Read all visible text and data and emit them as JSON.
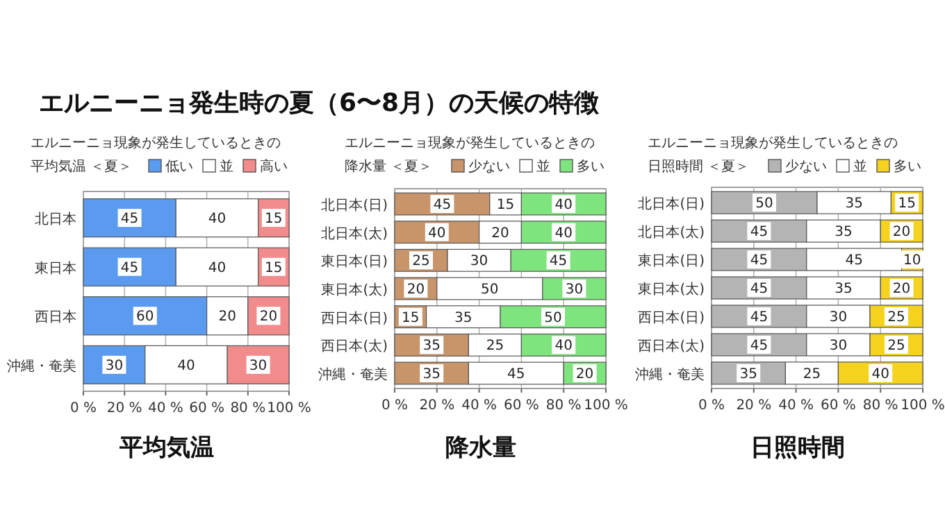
{
  "chart_data": [
    {
      "type": "bar",
      "orientation": "horizontal",
      "stacked": true,
      "annotations": [
        "エルニーニョ発生時の夏（6〜8月）の天候の特徴"
      ],
      "title": "エルニーニョ現象が発生しているときの",
      "subtitle": "平均気温 ＜夏＞",
      "xlabel": "平均気温",
      "categories": [
        "北日本",
        "東日本",
        "西日本",
        "沖縄・奄美"
      ],
      "series": [
        {
          "name": "低い",
          "color": "#5b9bef",
          "values": [
            45,
            45,
            60,
            30
          ]
        },
        {
          "name": "並",
          "color": "#ffffff",
          "values": [
            40,
            40,
            20,
            40
          ]
        },
        {
          "name": "高い",
          "color": "#f28b8b",
          "values": [
            15,
            15,
            20,
            30
          ]
        }
      ],
      "xlim": [
        0,
        100
      ],
      "xticks": [
        {
          "value": 0,
          "label": "0 %"
        },
        {
          "value": 20,
          "label": "20 %"
        },
        {
          "value": 40,
          "label": "40 %"
        },
        {
          "value": 60,
          "label": "60 %"
        },
        {
          "value": 80,
          "label": "80 %"
        },
        {
          "value": 100,
          "label": "100 %"
        }
      ],
      "grid": "x",
      "legend": "top right",
      "data_labels": true
    },
    {
      "type": "bar",
      "orientation": "horizontal",
      "stacked": true,
      "title": "エルニーニョ現象が発生しているときの",
      "subtitle": "降水量 ＜夏＞",
      "xlabel": "降水量",
      "categories": [
        "北日本(日)",
        "北日本(太)",
        "東日本(日)",
        "東日本(太)",
        "西日本(日)",
        "西日本(太)",
        "沖縄・奄美"
      ],
      "series": [
        {
          "name": "少ない",
          "color": "#c8946a",
          "values": [
            45,
            40,
            25,
            20,
            15,
            35,
            35
          ]
        },
        {
          "name": "並",
          "color": "#ffffff",
          "values": [
            15,
            20,
            30,
            50,
            35,
            25,
            45
          ]
        },
        {
          "name": "多い",
          "color": "#7ee47e",
          "values": [
            40,
            40,
            45,
            30,
            50,
            40,
            20
          ]
        }
      ],
      "xlim": [
        0,
        100
      ],
      "xticks": [
        {
          "value": 0,
          "label": "0 %"
        },
        {
          "value": 20,
          "label": "20 %"
        },
        {
          "value": 40,
          "label": "40 %"
        },
        {
          "value": 60,
          "label": "60 %"
        },
        {
          "value": 80,
          "label": "80 %"
        },
        {
          "value": 100,
          "label": "100 %"
        }
      ],
      "grid": "x",
      "legend": "top right",
      "data_labels": true
    },
    {
      "type": "bar",
      "orientation": "horizontal",
      "stacked": true,
      "title": "エルニーニョ現象が発生しているときの",
      "subtitle": "日照時間 ＜夏＞",
      "xlabel": "日照時間",
      "categories": [
        "北日本(日)",
        "北日本(太)",
        "東日本(日)",
        "東日本(太)",
        "西日本(日)",
        "西日本(太)",
        "沖縄・奄美"
      ],
      "series": [
        {
          "name": "少ない",
          "color": "#b4b4b4",
          "values": [
            50,
            45,
            45,
            45,
            45,
            45,
            35
          ]
        },
        {
          "name": "並",
          "color": "#ffffff",
          "values": [
            35,
            35,
            45,
            35,
            30,
            30,
            25
          ]
        },
        {
          "name": "多い",
          "color": "#f5d21e",
          "values": [
            15,
            20,
            10,
            20,
            25,
            25,
            40
          ]
        }
      ],
      "xlim": [
        0,
        100
      ],
      "xticks": [
        {
          "value": 0,
          "label": "0 %"
        },
        {
          "value": 20,
          "label": "20 %"
        },
        {
          "value": 40,
          "label": "40 %"
        },
        {
          "value": 60,
          "label": "60 %"
        },
        {
          "value": 80,
          "label": "80 %"
        },
        {
          "value": 100,
          "label": "100 %"
        }
      ],
      "grid": "x",
      "legend": "top right",
      "data_labels": true
    }
  ]
}
